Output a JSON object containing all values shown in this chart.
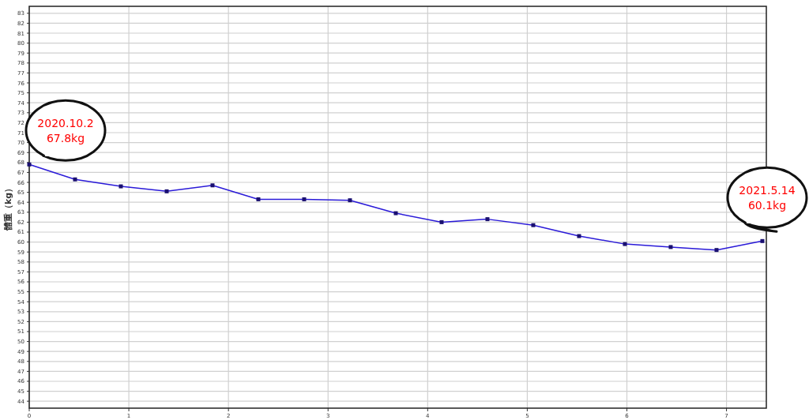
{
  "chart_data": {
    "type": "line",
    "ylabel": "體重（kg）",
    "x": [
      0,
      0.46,
      0.92,
      1.38,
      1.84,
      2.3,
      2.76,
      3.22,
      3.68,
      4.14,
      4.6,
      5.06,
      5.52,
      5.98,
      6.44,
      6.9,
      7.36
    ],
    "series": [
      {
        "color": "#2a1ad8",
        "values": [
          67.8,
          66.3,
          65.6,
          65.1,
          65.7,
          64.3,
          64.3,
          64.2,
          62.9,
          62.0,
          62.3,
          61.7,
          60.6,
          59.8,
          59.5,
          59.2,
          60.1
        ]
      }
    ],
    "xlim": [
      0,
      7.4
    ],
    "xticks": [
      0,
      1,
      2,
      3,
      4,
      5,
      6,
      7
    ],
    "ylim": [
      43.3,
      83.7
    ],
    "yticks": [
      44,
      45,
      46,
      47,
      48,
      49,
      50,
      51,
      52,
      53,
      54,
      55,
      56,
      57,
      58,
      59,
      60,
      61,
      62,
      63,
      64,
      65,
      66,
      67,
      68,
      69,
      70,
      71,
      72,
      73,
      74,
      75,
      76,
      77,
      78,
      79,
      80,
      81,
      82,
      83
    ],
    "grid": true,
    "marker": "square",
    "line_style": "solid",
    "annotations": [
      {
        "text": "2020.10.2\n67.8kg",
        "x": 0,
        "y": 67.8
      },
      {
        "text": "2021.5.14\n60.1kg",
        "x": 7.36,
        "y": 60.1
      }
    ]
  }
}
